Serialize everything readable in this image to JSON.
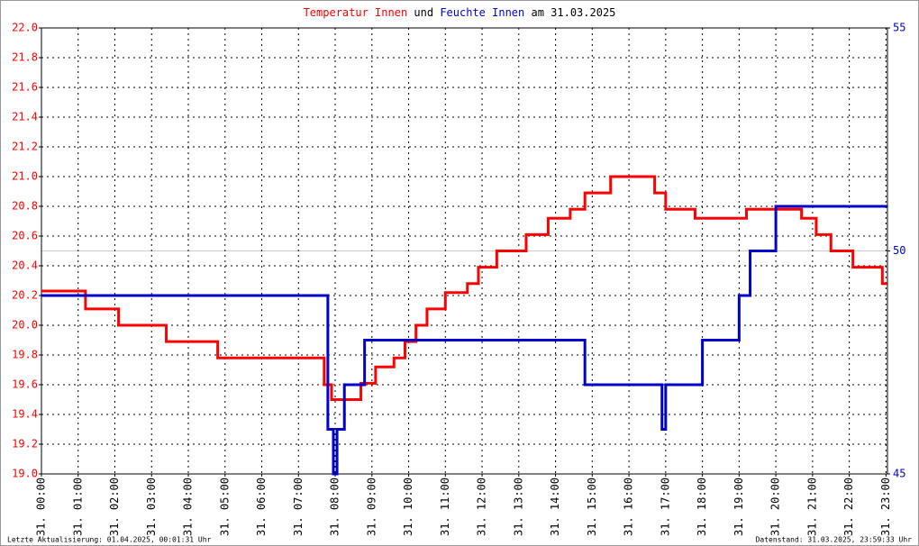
{
  "chart_data": {
    "type": "line",
    "title_parts": [
      {
        "text": "Temperatur Innen",
        "color": "#ff0000"
      },
      {
        "text": "und",
        "color": "#000000"
      },
      {
        "text": "Feuchte Innen",
        "color": "#0000cc"
      },
      {
        "text": "am 31.03.2025",
        "color": "#000000"
      }
    ],
    "footer_left": "Letzte Aktualisierung: 01.04.2025, 00:01:31 Uhr",
    "footer_right": "Datenstand: 31.03.2025, 23:59:33 Uhr",
    "xlim": [
      0,
      23.04
    ],
    "xticks": [
      {
        "value": 0,
        "label": "31. 00:00"
      },
      {
        "value": 1,
        "label": "31. 01:00"
      },
      {
        "value": 2,
        "label": "31. 02:00"
      },
      {
        "value": 3,
        "label": "31. 03:00"
      },
      {
        "value": 4,
        "label": "31. 04:00"
      },
      {
        "value": 5,
        "label": "31. 05:00"
      },
      {
        "value": 6,
        "label": "31. 06:00"
      },
      {
        "value": 7,
        "label": "31. 07:00"
      },
      {
        "value": 8,
        "label": "31. 08:00"
      },
      {
        "value": 9,
        "label": "31. 09:00"
      },
      {
        "value": 10,
        "label": "31. 10:00"
      },
      {
        "value": 11,
        "label": "31. 11:00"
      },
      {
        "value": 12,
        "label": "31. 12:00"
      },
      {
        "value": 13,
        "label": "31. 13:00"
      },
      {
        "value": 14,
        "label": "31. 14:00"
      },
      {
        "value": 15,
        "label": "31. 15:00"
      },
      {
        "value": 16,
        "label": "31. 16:00"
      },
      {
        "value": 17,
        "label": "31. 17:00"
      },
      {
        "value": 18,
        "label": "31. 18:00"
      },
      {
        "value": 19,
        "label": "31. 19:00"
      },
      {
        "value": 20,
        "label": "31. 20:00"
      },
      {
        "value": 21,
        "label": "31. 21:00"
      },
      {
        "value": 22,
        "label": "31. 22:00"
      },
      {
        "value": 23,
        "label": "31. 23:00"
      }
    ],
    "ylim": [
      19,
      22
    ],
    "yticks": [
      {
        "value": 19,
        "label": "19.0"
      },
      19.2,
      19.4,
      19.6,
      19.8,
      {
        "value": 20,
        "label": "20.0"
      },
      20.2,
      20.4,
      20.6,
      20.8,
      {
        "value": 21,
        "label": "21.0"
      },
      21.2,
      21.4,
      21.6,
      21.8,
      {
        "value": 22,
        "label": "22.0"
      }
    ],
    "y2lim": [
      45,
      55
    ],
    "y2ticks": [
      45,
      50,
      55
    ],
    "grid": true,
    "series": [
      {
        "name": "Temperatur Innen",
        "color": "#ff0000",
        "x": [
          0,
          1.2,
          1.2,
          2.1,
          2.1,
          3.4,
          3.4,
          4.8,
          4.8,
          7.7,
          7.7,
          7.9,
          7.9,
          8.7,
          8.7,
          9.1,
          9.1,
          9.6,
          9.6,
          9.9,
          9.9,
          10.2,
          10.2,
          10.5,
          10.5,
          11.0,
          11.0,
          11.6,
          11.6,
          11.9,
          11.9,
          12.4,
          12.4,
          13.2,
          13.2,
          13.8,
          13.8,
          14.4,
          14.4,
          14.8,
          14.8,
          15.5,
          15.5,
          16.7,
          16.7,
          17.0,
          17.0,
          17.8,
          17.8,
          19.2,
          19.2,
          20.7,
          20.7,
          21.1,
          21.1,
          21.5,
          21.5,
          22.1,
          22.1,
          22.9,
          22.9,
          23.04
        ],
        "values": [
          20.23,
          20.23,
          20.11,
          20.11,
          20.0,
          20.0,
          19.89,
          19.89,
          19.78,
          19.78,
          19.6,
          19.6,
          19.5,
          19.5,
          19.61,
          19.61,
          19.72,
          19.72,
          19.78,
          19.78,
          19.89,
          19.89,
          20.0,
          20.0,
          20.11,
          20.11,
          20.22,
          20.22,
          20.28,
          20.28,
          20.39,
          20.39,
          20.5,
          20.5,
          20.61,
          20.61,
          20.72,
          20.72,
          20.78,
          20.78,
          20.89,
          20.89,
          21.0,
          21.0,
          20.89,
          20.89,
          20.78,
          20.78,
          20.72,
          20.72,
          20.78,
          20.78,
          20.72,
          20.72,
          20.61,
          20.61,
          20.5,
          20.5,
          20.39,
          20.39,
          20.28,
          20.28
        ]
      },
      {
        "name": "Feuchte Innen",
        "color": "#0000cc",
        "axis": "y2",
        "x": [
          0,
          7.8,
          7.8,
          7.95,
          7.95,
          8.05,
          8.05,
          8.25,
          8.25,
          8.8,
          8.8,
          14.8,
          14.8,
          16.9,
          16.9,
          17.0,
          17.0,
          18.0,
          18.0,
          19.0,
          19.0,
          19.3,
          19.3,
          20.0,
          20.0,
          23.04
        ],
        "values": [
          49,
          49,
          46,
          46,
          45,
          45,
          46,
          46,
          47,
          47,
          48,
          48,
          47,
          47,
          46,
          46,
          47,
          47,
          48,
          48,
          49,
          49,
          50,
          50,
          51,
          51
        ]
      }
    ]
  }
}
